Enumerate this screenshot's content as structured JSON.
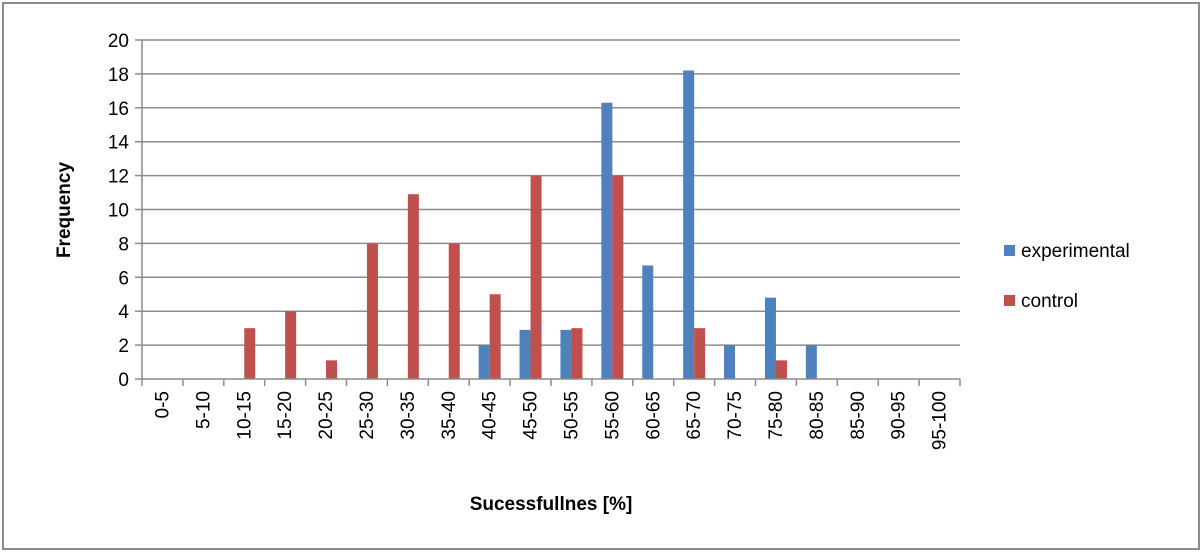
{
  "chart_data": {
    "type": "bar",
    "title": "",
    "xlabel": "Sucessfullnes [%]",
    "ylabel": "Frequency",
    "ylim": [
      0,
      20
    ],
    "yticks": [
      0,
      2,
      4,
      6,
      8,
      10,
      12,
      14,
      16,
      18,
      20
    ],
    "grid": "horizontal",
    "legend_position": "right",
    "categories": [
      "0-5",
      "5-10",
      "10-15",
      "15-20",
      "20-25",
      "25-30",
      "30-35",
      "35-40",
      "40-45",
      "45-50",
      "50-55",
      "55-60",
      "60-65",
      "65-70",
      "70-75",
      "75-80",
      "80-85",
      "85-90",
      "90-95",
      "95-100"
    ],
    "series": [
      {
        "name": "experimental",
        "color": "#4f81bd",
        "values": [
          0,
          0,
          0,
          0,
          0,
          0,
          0,
          0,
          2,
          2.9,
          2.9,
          16.3,
          6.7,
          18.2,
          2,
          4.8,
          2,
          0,
          0,
          0
        ]
      },
      {
        "name": "control",
        "color": "#c0504d",
        "values": [
          0,
          0,
          3,
          4,
          1.1,
          8,
          10.9,
          8,
          5,
          12,
          3,
          12,
          0,
          3,
          0,
          1.1,
          0,
          0,
          0,
          0
        ]
      }
    ]
  }
}
